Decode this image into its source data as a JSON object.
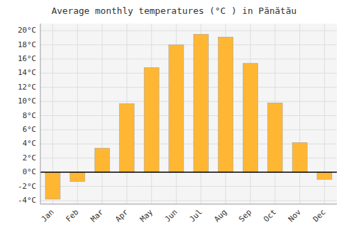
{
  "chart_data": {
    "type": "bar",
    "title": "Average monthly temperatures (°C ) in Pănătău",
    "categories": [
      "Jan",
      "Feb",
      "Mar",
      "Apr",
      "May",
      "Jun",
      "Jul",
      "Aug",
      "Sep",
      "Oct",
      "Nov",
      "Dec"
    ],
    "values": [
      -3.8,
      -1.3,
      3.4,
      9.7,
      14.8,
      18.0,
      19.5,
      19.1,
      15.4,
      9.8,
      4.2,
      -1.0
    ],
    "color": "#FFB733",
    "ylim": [
      -4.5,
      21
    ],
    "yticks": [
      {
        "value": -4,
        "label": "-4°C"
      },
      {
        "value": -2,
        "label": "-2°C"
      },
      {
        "value": 0,
        "label": "0°C"
      },
      {
        "value": 2,
        "label": "2°C"
      },
      {
        "value": 4,
        "label": "4°C"
      },
      {
        "value": 6,
        "label": "6°C"
      },
      {
        "value": 8,
        "label": "8°C"
      },
      {
        "value": 10,
        "label": "10°C"
      },
      {
        "value": 12,
        "label": "12°C"
      },
      {
        "value": 14,
        "label": "14°C"
      },
      {
        "value": 16,
        "label": "16°C"
      },
      {
        "value": 18,
        "label": "18°C"
      },
      {
        "value": 20,
        "label": "20°C"
      }
    ],
    "grid": true
  }
}
